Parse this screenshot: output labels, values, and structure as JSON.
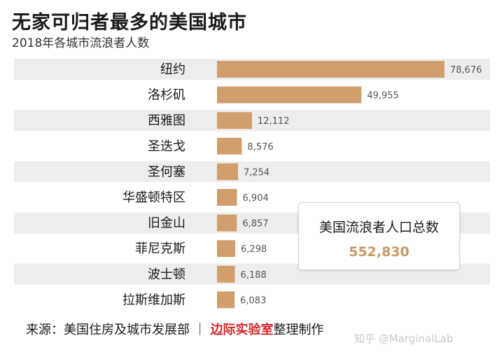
{
  "title": "无家可归者最多的美国城市",
  "subtitle": "2018年各城市流浪者人数",
  "chart_data": {
    "type": "bar",
    "orientation": "horizontal",
    "categories": [
      "纽约",
      "洛杉矶",
      "西雅图",
      "圣迭戈",
      "圣何塞",
      "华盛顿特区",
      "旧金山",
      "菲尼克斯",
      "波士顿",
      "拉斯维加斯"
    ],
    "values": [
      78676,
      49955,
      12112,
      8576,
      7254,
      6904,
      6857,
      6298,
      6188,
      6083
    ],
    "value_labels": [
      "78,676",
      "49,955",
      "12,112",
      "8,576",
      "7,254",
      "6,904",
      "6,857",
      "6,298",
      "6,188",
      "6,083"
    ],
    "bar_color": "#d09f6d",
    "row_band_color": "#ededed",
    "xlim": [
      0,
      78676
    ]
  },
  "total_box": {
    "label": "美国流浪者人口总数",
    "value": "552,830",
    "value_color": "#c49a66"
  },
  "footer": {
    "source": "来源：美国住房及城市发展部 ｜ ",
    "lab": "边际实验室",
    "suffix": "整理制作"
  },
  "watermark": "知乎 @MarginalLab"
}
